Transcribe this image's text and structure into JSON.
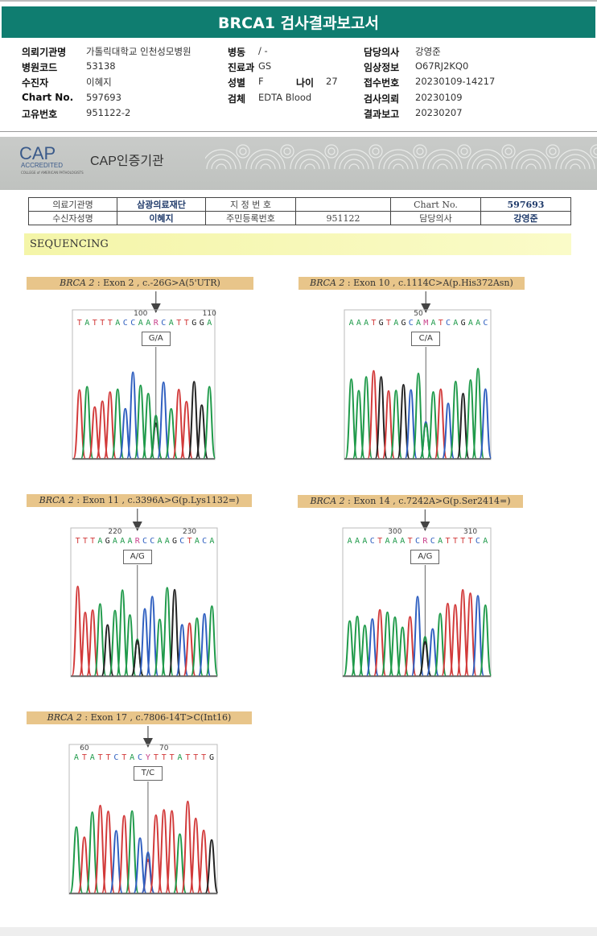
{
  "title": "BRCA1 검사결과보고서",
  "info": {
    "col1": [
      {
        "label": "의뢰기관명",
        "value": "가톨릭대학교 인천성모병원"
      },
      {
        "label": "병원코드",
        "value": "53138"
      },
      {
        "label": "수진자",
        "value": "이혜지"
      },
      {
        "label": "Chart No.",
        "value": "597693"
      },
      {
        "label": "고유번호",
        "value": "951122-2"
      }
    ],
    "col2": [
      {
        "label": "병동",
        "value": "/ -"
      },
      {
        "label": "진료과",
        "value": "GS"
      },
      {
        "label": "성별",
        "value": "F"
      },
      {
        "label": "검체",
        "value": "EDTA Blood"
      }
    ],
    "age": {
      "label": "나이",
      "value": "27"
    },
    "col3": [
      {
        "label": "담당의사",
        "value": "강영준"
      },
      {
        "label": "임상정보",
        "value": "O67RJ2KQ0"
      },
      {
        "label": "접수번호",
        "value": "20230109-14217"
      },
      {
        "label": "검사의뢰",
        "value": "20230109"
      },
      {
        "label": "결과보고",
        "value": "20230207"
      }
    ]
  },
  "banner": {
    "logo": "CAP",
    "accredited": "ACCREDITED",
    "college": "COLLEGE of AMERICAN PATHOLOGISTS",
    "text": "CAP인증기관"
  },
  "patient_table": {
    "r1": [
      "의료기관명",
      "삼광의료재단",
      "지 정 번 호",
      "",
      "Chart No.",
      "597693"
    ],
    "r2": [
      "수신자성명",
      "이혜지",
      "주민등록번호",
      "951122",
      "담당의사",
      "강영준"
    ]
  },
  "section": "SEQUENCING",
  "colors": {
    "A": "#1f9a4a",
    "C": "#2f5fc0",
    "G": "#222222",
    "T": "#d23a3a",
    "N": "#c8408a"
  },
  "variants": [
    {
      "gene": "BRCA 2",
      "desc": ": Exon 2 , c.-26G>A(5'UTR)",
      "seq": "TATTTACCAARCATTGGA",
      "ticks": [
        {
          "label": "100",
          "base": 8
        },
        {
          "label": "110",
          "base": 17
        }
      ],
      "call": "G/A",
      "het": 10,
      "alleles": [
        "G",
        "A"
      ]
    },
    {
      "gene": "BRCA 2",
      "desc": ": Exon 10 , c.1114C>A(p.His372Asn)",
      "seq": "AAATGTAGCAMATCAGAAC",
      "ticks": [
        {
          "label": "50",
          "base": 9
        }
      ],
      "call": "C/A",
      "het": 10,
      "alleles": [
        "C",
        "A"
      ]
    },
    {
      "gene": "BRCA 2",
      "desc": ": Exon 11 , c.3396A>G(p.Lys1132=)",
      "seq": "TTTAGAAARCCAAGCTACA",
      "ticks": [
        {
          "label": "220",
          "base": 5
        },
        {
          "label": "230",
          "base": 15
        }
      ],
      "call": "A/G",
      "het": 8,
      "alleles": [
        "A",
        "G"
      ]
    },
    {
      "gene": "BRCA 2",
      "desc": ": Exon 14 , c.7242A>G(p.Ser2414=)",
      "seq": "AAACTAAATCRCATTTTCA",
      "ticks": [
        {
          "label": "300",
          "base": 6
        },
        {
          "label": "310",
          "base": 16
        }
      ],
      "call": "A/G",
      "het": 10,
      "alleles": [
        "A",
        "G"
      ]
    },
    {
      "gene": "BRCA 2",
      "desc": ": Exon 17 , c.7806-14T>C(Int16)",
      "seq": "ATATTCTACYTTTATTTG",
      "ticks": [
        {
          "label": "60",
          "base": 1
        },
        {
          "label": "70",
          "base": 11
        }
      ],
      "call": "T/C",
      "het": 9,
      "alleles": [
        "T",
        "C"
      ]
    }
  ]
}
